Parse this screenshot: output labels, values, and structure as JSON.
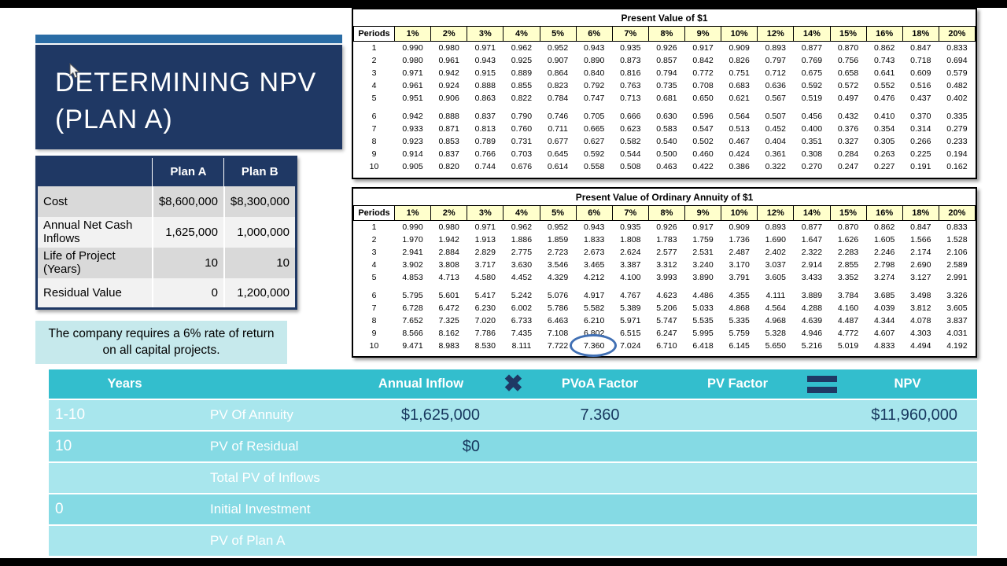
{
  "slide": {
    "title_line1": "DETERMINING NPV",
    "title_line2": "(PLAN A)",
    "note": "The company requires a 6% rate of return on all capital projects."
  },
  "plan_table": {
    "col_headers": [
      "Plan A",
      "Plan B"
    ],
    "rows": [
      {
        "label": "Cost",
        "plan_a": "$8,600,000",
        "plan_b": "$8,300,000"
      },
      {
        "label": "Annual Net Cash Inflows",
        "plan_a": "1,625,000",
        "plan_b": "1,000,000"
      },
      {
        "label": "Life of Project (Years)",
        "plan_a": "10",
        "plan_b": "10"
      },
      {
        "label": "Residual Value",
        "plan_a": "0",
        "plan_b": "1,200,000"
      }
    ]
  },
  "pv_table": {
    "title": "Present Value of $1",
    "periods_label": "Periods",
    "rates": [
      "1%",
      "2%",
      "3%",
      "4%",
      "5%",
      "6%",
      "7%",
      "8%",
      "9%",
      "10%",
      "12%",
      "14%",
      "15%",
      "16%",
      "18%",
      "20%"
    ],
    "rows": [
      {
        "period": "1",
        "values": [
          "0.990",
          "0.980",
          "0.971",
          "0.962",
          "0.952",
          "0.943",
          "0.935",
          "0.926",
          "0.917",
          "0.909",
          "0.893",
          "0.877",
          "0.870",
          "0.862",
          "0.847",
          "0.833"
        ]
      },
      {
        "period": "2",
        "values": [
          "0.980",
          "0.961",
          "0.943",
          "0.925",
          "0.907",
          "0.890",
          "0.873",
          "0.857",
          "0.842",
          "0.826",
          "0.797",
          "0.769",
          "0.756",
          "0.743",
          "0.718",
          "0.694"
        ]
      },
      {
        "period": "3",
        "values": [
          "0.971",
          "0.942",
          "0.915",
          "0.889",
          "0.864",
          "0.840",
          "0.816",
          "0.794",
          "0.772",
          "0.751",
          "0.712",
          "0.675",
          "0.658",
          "0.641",
          "0.609",
          "0.579"
        ]
      },
      {
        "period": "4",
        "values": [
          "0.961",
          "0.924",
          "0.888",
          "0.855",
          "0.823",
          "0.792",
          "0.763",
          "0.735",
          "0.708",
          "0.683",
          "0.636",
          "0.592",
          "0.572",
          "0.552",
          "0.516",
          "0.482"
        ]
      },
      {
        "period": "5",
        "values": [
          "0.951",
          "0.906",
          "0.863",
          "0.822",
          "0.784",
          "0.747",
          "0.713",
          "0.681",
          "0.650",
          "0.621",
          "0.567",
          "0.519",
          "0.497",
          "0.476",
          "0.437",
          "0.402"
        ]
      },
      {
        "period": "6",
        "values": [
          "0.942",
          "0.888",
          "0.837",
          "0.790",
          "0.746",
          "0.705",
          "0.666",
          "0.630",
          "0.596",
          "0.564",
          "0.507",
          "0.456",
          "0.432",
          "0.410",
          "0.370",
          "0.335"
        ]
      },
      {
        "period": "7",
        "values": [
          "0.933",
          "0.871",
          "0.813",
          "0.760",
          "0.711",
          "0.665",
          "0.623",
          "0.583",
          "0.547",
          "0.513",
          "0.452",
          "0.400",
          "0.376",
          "0.354",
          "0.314",
          "0.279"
        ]
      },
      {
        "period": "8",
        "values": [
          "0.923",
          "0.853",
          "0.789",
          "0.731",
          "0.677",
          "0.627",
          "0.582",
          "0.540",
          "0.502",
          "0.467",
          "0.404",
          "0.351",
          "0.327",
          "0.305",
          "0.266",
          "0.233"
        ]
      },
      {
        "period": "9",
        "values": [
          "0.914",
          "0.837",
          "0.766",
          "0.703",
          "0.645",
          "0.592",
          "0.544",
          "0.500",
          "0.460",
          "0.424",
          "0.361",
          "0.308",
          "0.284",
          "0.263",
          "0.225",
          "0.194"
        ]
      },
      {
        "period": "10",
        "values": [
          "0.905",
          "0.820",
          "0.744",
          "0.676",
          "0.614",
          "0.558",
          "0.508",
          "0.463",
          "0.422",
          "0.386",
          "0.322",
          "0.270",
          "0.247",
          "0.227",
          "0.191",
          "0.162"
        ]
      }
    ]
  },
  "pvoa_table": {
    "title": "Present Value of Ordinary Annuity of $1",
    "periods_label": "Periods",
    "rates": [
      "1%",
      "2%",
      "3%",
      "4%",
      "5%",
      "6%",
      "7%",
      "8%",
      "9%",
      "10%",
      "12%",
      "14%",
      "15%",
      "16%",
      "18%",
      "20%"
    ],
    "highlight": {
      "period": "10",
      "rate": "6%",
      "value": "7.360"
    },
    "rows": [
      {
        "period": "1",
        "values": [
          "0.990",
          "0.980",
          "0.971",
          "0.962",
          "0.952",
          "0.943",
          "0.935",
          "0.926",
          "0.917",
          "0.909",
          "0.893",
          "0.877",
          "0.870",
          "0.862",
          "0.847",
          "0.833"
        ]
      },
      {
        "period": "2",
        "values": [
          "1.970",
          "1.942",
          "1.913",
          "1.886",
          "1.859",
          "1.833",
          "1.808",
          "1.783",
          "1.759",
          "1.736",
          "1.690",
          "1.647",
          "1.626",
          "1.605",
          "1.566",
          "1.528"
        ]
      },
      {
        "period": "3",
        "values": [
          "2.941",
          "2.884",
          "2.829",
          "2.775",
          "2.723",
          "2.673",
          "2.624",
          "2.577",
          "2.531",
          "2.487",
          "2.402",
          "2.322",
          "2.283",
          "2.246",
          "2.174",
          "2.106"
        ]
      },
      {
        "period": "4",
        "values": [
          "3.902",
          "3.808",
          "3.717",
          "3.630",
          "3.546",
          "3.465",
          "3.387",
          "3.312",
          "3.240",
          "3.170",
          "3.037",
          "2.914",
          "2.855",
          "2.798",
          "2.690",
          "2.589"
        ]
      },
      {
        "period": "5",
        "values": [
          "4.853",
          "4.713",
          "4.580",
          "4.452",
          "4.329",
          "4.212",
          "4.100",
          "3.993",
          "3.890",
          "3.791",
          "3.605",
          "3.433",
          "3.352",
          "3.274",
          "3.127",
          "2.991"
        ]
      },
      {
        "period": "6",
        "values": [
          "5.795",
          "5.601",
          "5.417",
          "5.242",
          "5.076",
          "4.917",
          "4.767",
          "4.623",
          "4.486",
          "4.355",
          "4.111",
          "3.889",
          "3.784",
          "3.685",
          "3.498",
          "3.326"
        ]
      },
      {
        "period": "7",
        "values": [
          "6.728",
          "6.472",
          "6.230",
          "6.002",
          "5.786",
          "5.582",
          "5.389",
          "5.206",
          "5.033",
          "4.868",
          "4.564",
          "4.288",
          "4.160",
          "4.039",
          "3.812",
          "3.605"
        ]
      },
      {
        "period": "8",
        "values": [
          "7.652",
          "7.325",
          "7.020",
          "6.733",
          "6.463",
          "6.210",
          "5.971",
          "5.747",
          "5.535",
          "5.335",
          "4.968",
          "4.639",
          "4.487",
          "4.344",
          "4.078",
          "3.837"
        ]
      },
      {
        "period": "9",
        "values": [
          "8.566",
          "8.162",
          "7.786",
          "7.435",
          "7.108",
          "6.802",
          "6.515",
          "6.247",
          "5.995",
          "5.759",
          "5.328",
          "4.946",
          "4.772",
          "4.607",
          "4.303",
          "4.031"
        ]
      },
      {
        "period": "10",
        "values": [
          "9.471",
          "8.983",
          "8.530",
          "8.111",
          "7.722",
          "7.360",
          "7.024",
          "6.710",
          "6.418",
          "6.145",
          "5.650",
          "5.216",
          "5.019",
          "4.833",
          "4.494",
          "4.192"
        ]
      }
    ]
  },
  "calc_table": {
    "headers": {
      "years": "Years",
      "annual_inflow": "Annual Inflow",
      "multiply_icon": "✖",
      "pvoa_factor": "PVoA Factor",
      "pv_factor": "PV Factor",
      "equals_icon": "=",
      "npv": "NPV"
    },
    "rows": [
      {
        "years": "1-10",
        "label": "PV Of Annuity",
        "annual_inflow": "$1,625,000",
        "pvoa_factor": "7.360",
        "pv_factor": "",
        "npv": "$11,960,000"
      },
      {
        "years": "10",
        "label": "PV of Residual",
        "annual_inflow": "$0",
        "pvoa_factor": "",
        "pv_factor": "",
        "npv": ""
      },
      {
        "years": "",
        "label": "Total PV of Inflows",
        "annual_inflow": "",
        "pvoa_factor": "",
        "pv_factor": "",
        "npv": ""
      },
      {
        "years": "0",
        "label": "Initial Investment",
        "annual_inflow": "",
        "pvoa_factor": "",
        "pv_factor": "",
        "npv": ""
      },
      {
        "years": "",
        "label": "PV of Plan A",
        "annual_inflow": "",
        "pvoa_factor": "",
        "pv_factor": "",
        "npv": ""
      }
    ]
  },
  "colors": {
    "navy": "#1F3864",
    "accent_blue": "#2A6CA5",
    "note_teal": "#C6E9EC",
    "calc_header_teal": "#33BECD",
    "calc_row_light": "#A8E6ED",
    "calc_row_dark": "#85DAE4",
    "rate_header_yellow": "#FFFFCC",
    "highlight_circle_blue": "#4170B4",
    "value_navy": "#17375E"
  }
}
